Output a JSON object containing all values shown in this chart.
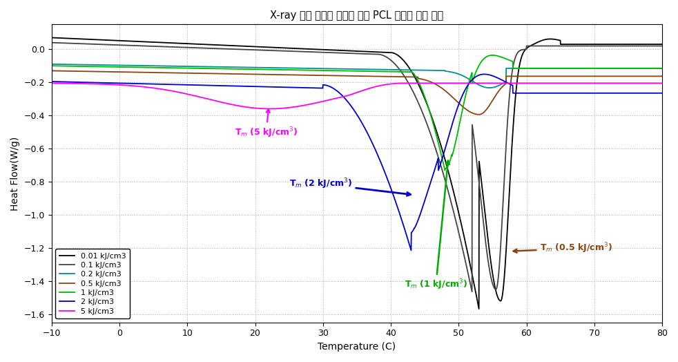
{
  "title": "X-ray 노광 에너지 차이에 의한 PCL 폴리머 특성 변화",
  "xlabel": "Temperature (C)",
  "ylabel": "Heat Flow(W/g)",
  "xlim": [
    -10,
    80
  ],
  "ylim": [
    -1.65,
    0.15
  ],
  "xticks": [
    -10,
    0,
    10,
    20,
    30,
    40,
    50,
    60,
    70,
    80
  ],
  "yticks": [
    0,
    -0.2,
    -0.4,
    -0.6,
    -0.8,
    -1.0,
    -1.2,
    -1.4,
    -1.6
  ],
  "series_colors": {
    "0.01": "#000000",
    "0.1": "#444444",
    "0.2": "#009090",
    "0.5": "#8B4513",
    "1": "#00BB00",
    "2": "#0000CC",
    "5": "#FF00FF"
  },
  "legend_labels": [
    "0.01 kJ/cm3",
    "0.1 kJ/cm3",
    "0.2 kJ/cm3",
    "0.5 kJ/cm3",
    "1 kJ/cm3",
    "2 kJ/cm3",
    "5 kJ/cm3"
  ],
  "annotation_5": {
    "text": "T$_m$ (5 kJ/cm$^3$)",
    "color": "#FF00FF"
  },
  "annotation_2": {
    "text": "T$_m$ (2 kJ/cm$^3$)",
    "color": "#0000CC"
  },
  "annotation_1": {
    "text": "T$_m$ (1 kJ/cm$^3$)",
    "color": "#00AA00"
  },
  "annotation_05": {
    "text": "T$_m$ (0.5 kJ/cm$^3$)",
    "color": "#8B4513"
  },
  "bg_color": "#ffffff",
  "grid_color": "#999999"
}
